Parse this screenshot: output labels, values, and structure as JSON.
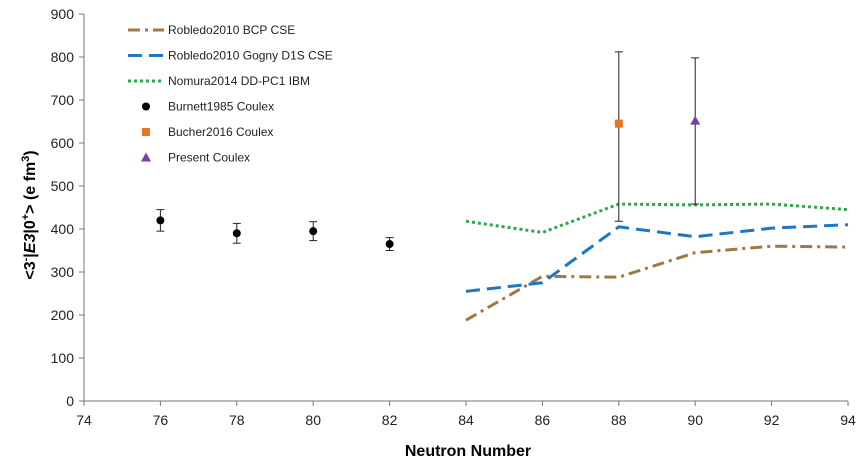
{
  "chart_data": {
    "type": "scatter",
    "xlabel": "Neutron Number",
    "ylabel": "<3⁻|E3|0⁺>  (e fm³)",
    "xlim": [
      74,
      94
    ],
    "ylim": [
      0,
      900
    ],
    "xticks": [
      74,
      76,
      78,
      80,
      82,
      84,
      86,
      88,
      90,
      92,
      94
    ],
    "yticks": [
      0,
      100,
      200,
      300,
      400,
      500,
      600,
      700,
      800,
      900
    ],
    "grid": false,
    "legend_position": "top-left",
    "series": [
      {
        "name": "Robledo2010 BCP CSE",
        "kind": "line",
        "style": "dashdot",
        "color": "#a07846",
        "points": [
          [
            84,
            188
          ],
          [
            86,
            290
          ],
          [
            88,
            288
          ],
          [
            90,
            345
          ],
          [
            92,
            360
          ],
          [
            94,
            358
          ]
        ]
      },
      {
        "name": "Robledo2010 Gogny D1S CSE",
        "kind": "line",
        "style": "dashed",
        "color": "#1f77c4",
        "points": [
          [
            84,
            255
          ],
          [
            86,
            275
          ],
          [
            88,
            405
          ],
          [
            90,
            382
          ],
          [
            92,
            402
          ],
          [
            94,
            410
          ]
        ]
      },
      {
        "name": "Nomura2014 DD-PC1 IBM",
        "kind": "line",
        "style": "dotted",
        "color": "#2ca84a",
        "points": [
          [
            84,
            418
          ],
          [
            86,
            392
          ],
          [
            88,
            458
          ],
          [
            90,
            456
          ],
          [
            92,
            458
          ],
          [
            94,
            445
          ]
        ]
      },
      {
        "name": "Burnett1985 Coulex",
        "kind": "marker",
        "marker": "circle",
        "color": "#000000",
        "points": [
          {
            "x": 76,
            "y": 420,
            "low": 395,
            "high": 445
          },
          {
            "x": 78,
            "y": 390,
            "low": 367,
            "high": 413
          },
          {
            "x": 80,
            "y": 395,
            "low": 373,
            "high": 417
          },
          {
            "x": 82,
            "y": 365,
            "low": 350,
            "high": 380
          }
        ]
      },
      {
        "name": "Bucher2016 Coulex",
        "kind": "marker",
        "marker": "square",
        "color": "#e8761c",
        "points": [
          {
            "x": 88,
            "y": 645,
            "low": 418,
            "high": 812
          }
        ]
      },
      {
        "name": "Present Coulex",
        "kind": "marker",
        "marker": "triangle",
        "color": "#7a3fa0",
        "points": [
          {
            "x": 90,
            "y": 652,
            "low": 458,
            "high": 798
          }
        ]
      }
    ]
  }
}
